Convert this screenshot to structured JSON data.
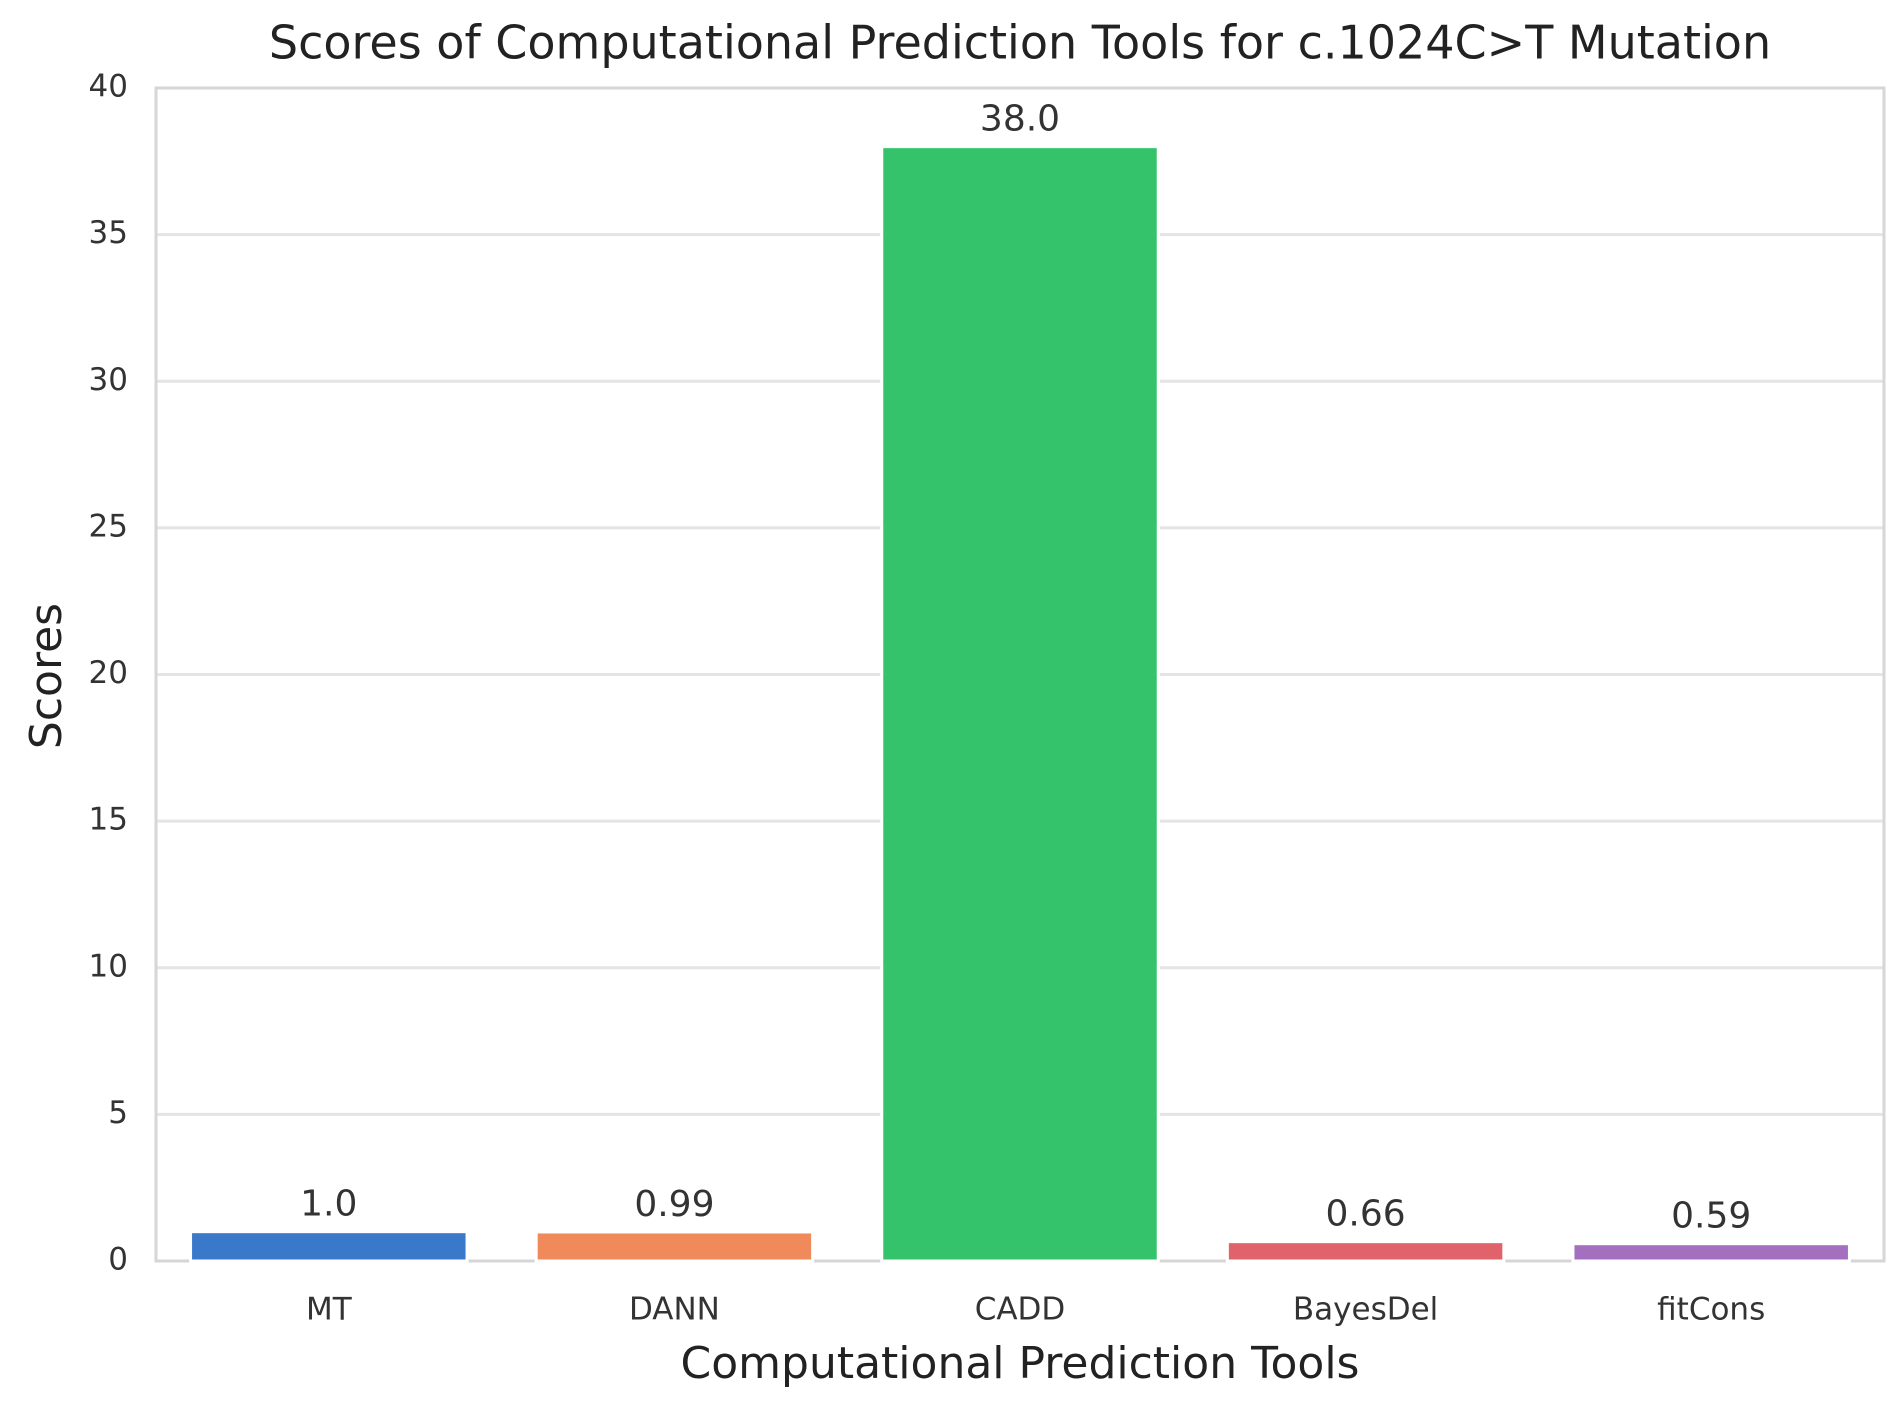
{
  "chart_data": {
    "type": "bar",
    "title": "Scores of Computational Prediction Tools for c.1024C>T Mutation",
    "x_label": "Computational Prediction Tools",
    "y_label": "Scores",
    "categories": [
      "MT",
      "DANN",
      "CADD",
      "BayesDel",
      "fitCons"
    ],
    "values": [
      1.0,
      0.99,
      38.0,
      0.66,
      0.59
    ],
    "value_labels": [
      "1.0",
      "0.99",
      "38.0",
      "0.66",
      "0.59"
    ],
    "colors": [
      "#3a78c9",
      "#f08a5a",
      "#34c36b",
      "#e0636b",
      "#a46fbf"
    ],
    "ylim": [
      0,
      40
    ],
    "yticks": [
      0,
      5,
      10,
      15,
      20,
      25,
      30,
      35,
      40
    ],
    "grid": true
  }
}
